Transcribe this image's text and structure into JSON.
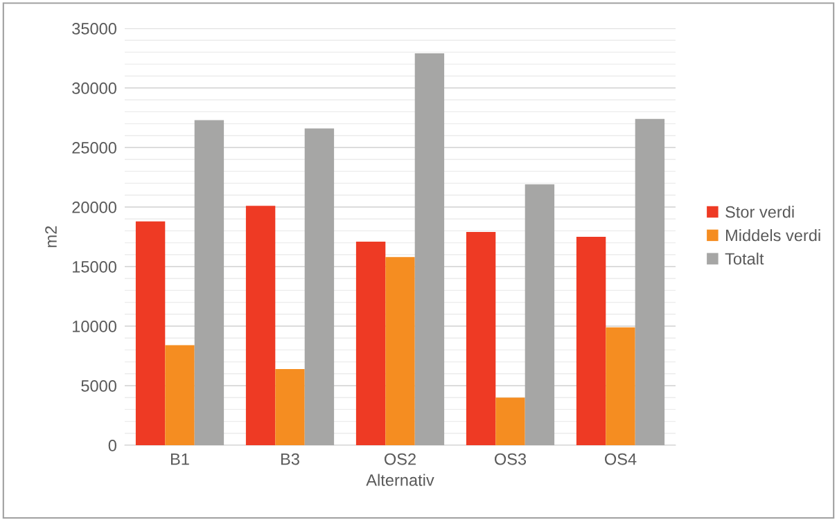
{
  "chart_data": {
    "type": "bar",
    "xlabel": "Alternativ",
    "ylabel": "m2",
    "categories": [
      "B1",
      "B3",
      "OS2",
      "OS3",
      "OS4"
    ],
    "series": [
      {
        "name": "Stor verdi",
        "color": "#ee3a24",
        "values": [
          18800,
          20100,
          17100,
          17900,
          17500
        ]
      },
      {
        "name": "Middels verdi",
        "color": "#f58d21",
        "values": [
          8400,
          6400,
          15800,
          4000,
          9900
        ]
      },
      {
        "name": "Totalt",
        "color": "#a6a6a5",
        "values": [
          27300,
          26600,
          32900,
          21900,
          27400
        ]
      }
    ],
    "ylim": [
      0,
      35000
    ],
    "yticks": [
      0,
      5000,
      10000,
      15000,
      20000,
      25000,
      30000,
      35000
    ],
    "grid": "y",
    "legend": "right"
  }
}
